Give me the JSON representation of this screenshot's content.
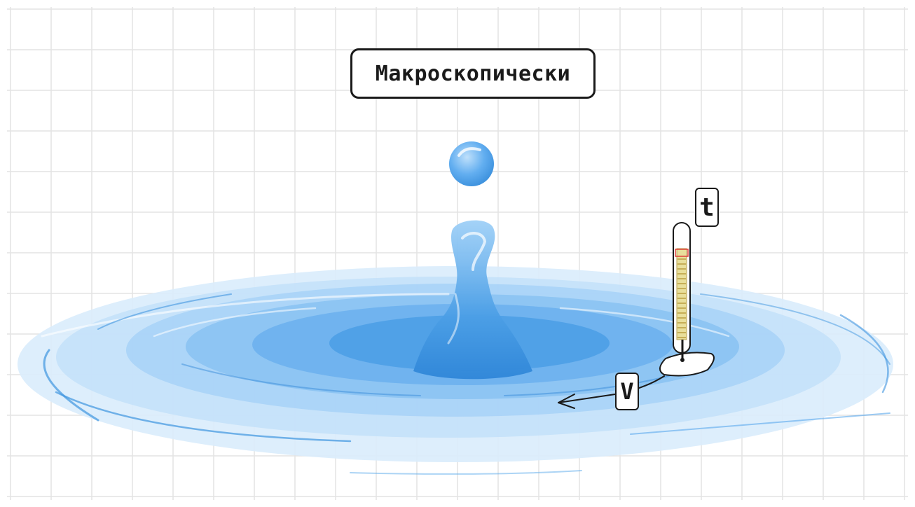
{
  "title": "Макроскопически",
  "labels": {
    "temperature": "t",
    "velocity": "V"
  },
  "colors": {
    "grid": "#e3e3e3",
    "water_light": "#cfe6fb",
    "water_mid": "#8cc4f2",
    "water_dark": "#3f95e0",
    "drop": "#5aa9ec",
    "outline": "#1a1a1a",
    "thermometer_liquid": "#d4c27a",
    "thermometer_mark": "#e0413a"
  },
  "icons": {
    "drop": "water-drop-icon",
    "splash": "water-splash-icon",
    "thermometer": "thermometer-icon",
    "float": "float-paper-icon",
    "arrow": "velocity-arrow-icon"
  }
}
